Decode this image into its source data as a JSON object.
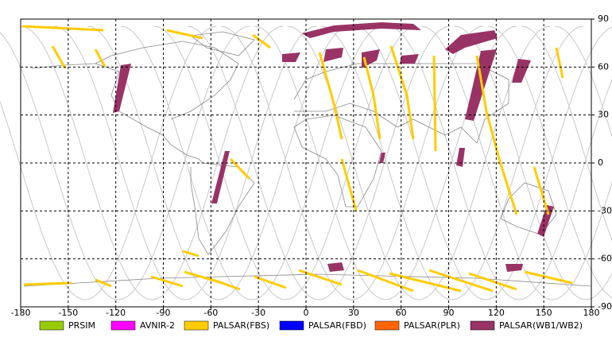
{
  "chart_data": {
    "type": "map",
    "xlim": [
      -180,
      180
    ],
    "ylim": [
      -90,
      90
    ],
    "xticks": [
      -180,
      -150,
      -120,
      -90,
      -60,
      -30,
      0,
      30,
      60,
      90,
      120,
      150,
      180
    ],
    "yticks": [
      90,
      60,
      30,
      0,
      -30,
      -60,
      -90
    ],
    "grid": true,
    "legend": [
      {
        "name": "PRSIM",
        "color": "#99cc00"
      },
      {
        "name": "AVNIR-2",
        "color": "#ff00ff"
      },
      {
        "name": "PALSAR(FBS)",
        "color": "#ffcc00"
      },
      {
        "name": "PALSAR(FBD)",
        "color": "#0000ff"
      },
      {
        "name": "PALSAR(PLR)",
        "color": "#ff6600"
      },
      {
        "name": "PALSAR(WB1/WB2)",
        "color": "#993366"
      }
    ]
  }
}
